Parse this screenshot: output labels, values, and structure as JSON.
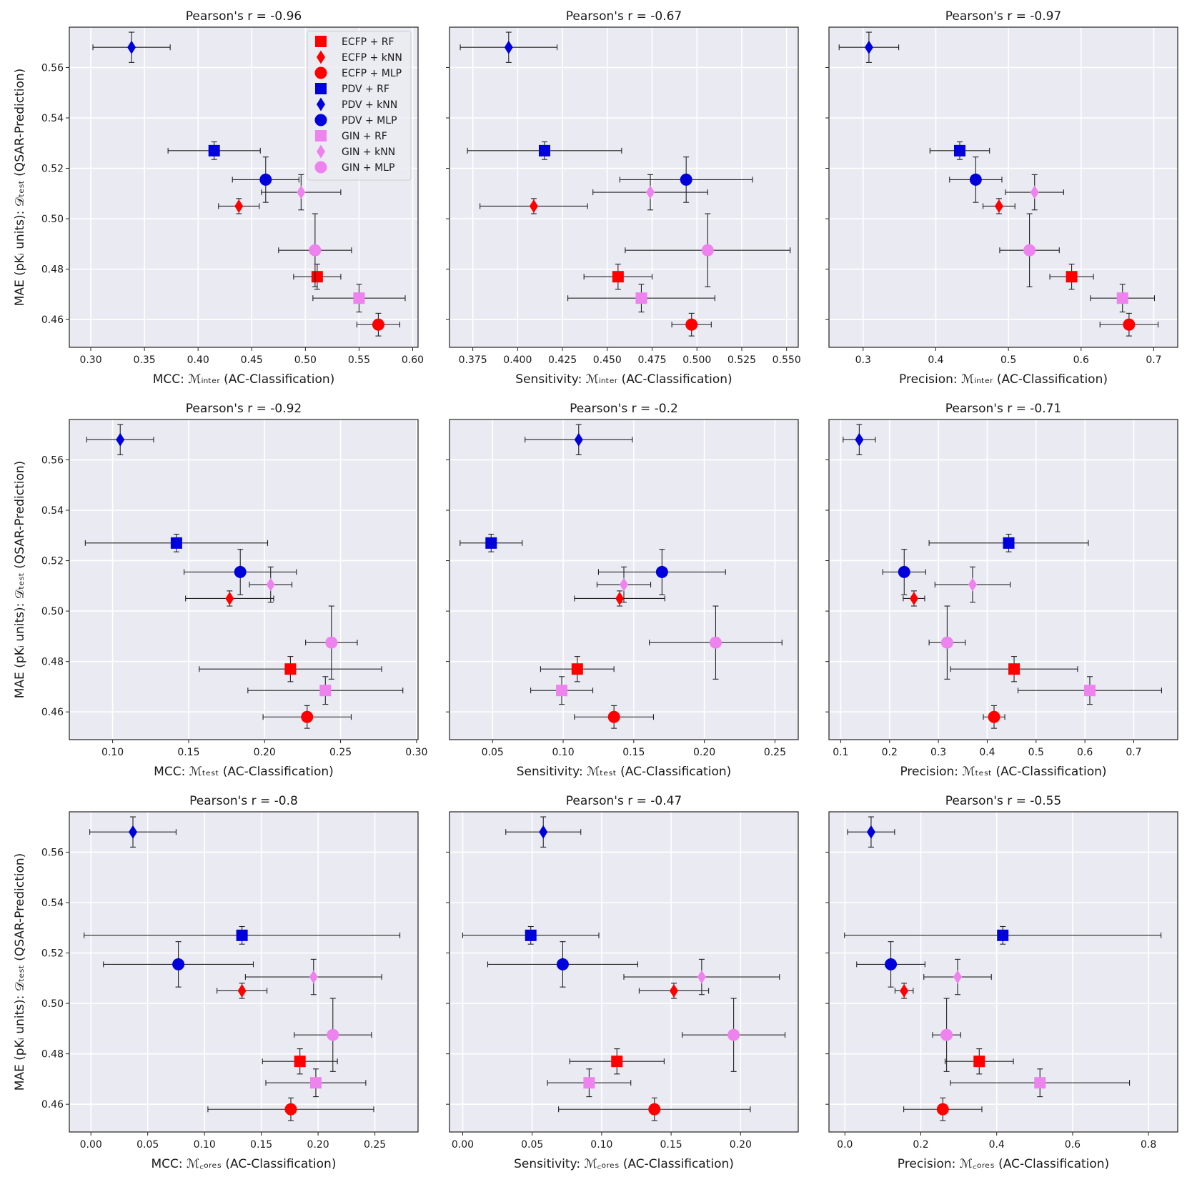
{
  "figure": {
    "ylabel": "MAE (pKᵢ units): 𝒟ₜₑₛₜ (QSAR-Prediction)",
    "legend": [
      "ECFP + RF",
      "ECFP + kNN",
      "ECFP + MLP",
      "PDV + RF",
      "PDV + kNN",
      "PDV + MLP",
      "GIN + RF",
      "GIN + kNN",
      "GIN + MLP"
    ],
    "colors": {
      "ECFP": "#ff0000",
      "PDV": "#0000dd",
      "GIN": "#ee82ee",
      "panel_bg": "#eaeaf2",
      "grid": "#ffffff"
    }
  },
  "chart_data": [
    {
      "type": "scatter",
      "title": "Pearson's r = -0.96",
      "xlabel": "MCC: ℳᵢₙₜₑᵣ (AC-Classification)",
      "xlim": [
        0.28,
        0.605
      ],
      "ylim": [
        0.449,
        0.576
      ],
      "xticks": [
        0.3,
        0.35,
        0.4,
        0.45,
        0.5,
        0.55,
        0.6
      ],
      "xtick_labels": [
        "0.30",
        "0.35",
        "0.40",
        "0.45",
        "0.50",
        "0.55",
        "0.60"
      ],
      "yticks": [
        0.46,
        0.48,
        0.5,
        0.52,
        0.54,
        0.56
      ],
      "ytick_labels": [
        "0.46",
        "0.48",
        "0.50",
        "0.52",
        "0.54",
        "0.56"
      ],
      "points": [
        {
          "label": "ECFP + RF",
          "x": 0.511,
          "xerr": 0.022,
          "y": 0.477,
          "yerr": 0.005
        },
        {
          "label": "ECFP + kNN",
          "x": 0.438,
          "xerr": 0.019,
          "y": 0.505,
          "yerr": 0.003
        },
        {
          "label": "ECFP + MLP",
          "x": 0.568,
          "xerr": 0.02,
          "y": 0.458,
          "yerr": 0.0045
        },
        {
          "label": "PDV + RF",
          "x": 0.415,
          "xerr": 0.043,
          "y": 0.527,
          "yerr": 0.0035
        },
        {
          "label": "PDV + kNN",
          "x": 0.338,
          "xerr": 0.036,
          "y": 0.568,
          "yerr": 0.006
        },
        {
          "label": "PDV + MLP",
          "x": 0.463,
          "xerr": 0.031,
          "y": 0.5155,
          "yerr": 0.009
        },
        {
          "label": "GIN + RF",
          "x": 0.55,
          "xerr": 0.043,
          "y": 0.4685,
          "yerr": 0.0055
        },
        {
          "label": "GIN + kNN",
          "x": 0.496,
          "xerr": 0.037,
          "y": 0.5105,
          "yerr": 0.007
        },
        {
          "label": "GIN + MLP",
          "x": 0.509,
          "xerr": 0.034,
          "y": 0.4875,
          "yerr": 0.0145
        }
      ]
    },
    {
      "type": "scatter",
      "title": "Pearson's r = -0.67",
      "xlabel": "Sensitivity: ℳᵢₙₜₑᵣ (AC-Classification)",
      "xlim": [
        0.362,
        0.5565
      ],
      "ylim": [
        0.449,
        0.576
      ],
      "xticks": [
        0.375,
        0.4,
        0.425,
        0.45,
        0.475,
        0.5,
        0.525,
        0.55
      ],
      "xtick_labels": [
        "0.375",
        "0.400",
        "0.425",
        "0.450",
        "0.475",
        "0.500",
        "0.525",
        "0.550"
      ],
      "yticks": [
        0.46,
        0.48,
        0.5,
        0.52,
        0.54,
        0.56
      ],
      "ytick_labels": [
        "",
        "",
        "",
        "",
        "",
        ""
      ],
      "points": [
        {
          "label": "ECFP + RF",
          "x": 0.456,
          "xerr": 0.019,
          "y": 0.477,
          "yerr": 0.005
        },
        {
          "label": "ECFP + kNN",
          "x": 0.409,
          "xerr": 0.03,
          "y": 0.505,
          "yerr": 0.003
        },
        {
          "label": "ECFP + MLP",
          "x": 0.497,
          "xerr": 0.011,
          "y": 0.458,
          "yerr": 0.0045
        },
        {
          "label": "PDV + RF",
          "x": 0.415,
          "xerr": 0.043,
          "y": 0.527,
          "yerr": 0.0035
        },
        {
          "label": "PDV + kNN",
          "x": 0.395,
          "xerr": 0.027,
          "y": 0.568,
          "yerr": 0.006
        },
        {
          "label": "PDV + MLP",
          "x": 0.494,
          "xerr": 0.037,
          "y": 0.5155,
          "yerr": 0.009
        },
        {
          "label": "GIN + RF",
          "x": 0.469,
          "xerr": 0.041,
          "y": 0.4685,
          "yerr": 0.0055
        },
        {
          "label": "GIN + kNN",
          "x": 0.474,
          "xerr": 0.032,
          "y": 0.5105,
          "yerr": 0.007
        },
        {
          "label": "GIN + MLP",
          "x": 0.506,
          "xerr": 0.046,
          "y": 0.4875,
          "yerr": 0.0145
        }
      ]
    },
    {
      "type": "scatter",
      "title": "Pearson's r = -0.97",
      "xlabel": "Precision: ℳᵢₙₜₑᵣ (AC-Classification)",
      "xlim": [
        0.253,
        0.733
      ],
      "ylim": [
        0.449,
        0.576
      ],
      "xticks": [
        0.3,
        0.4,
        0.5,
        0.6,
        0.7
      ],
      "xtick_labels": [
        "0.3",
        "0.4",
        "0.5",
        "0.6",
        "0.7"
      ],
      "yticks": [
        0.46,
        0.48,
        0.5,
        0.52,
        0.54,
        0.56
      ],
      "ytick_labels": [
        "",
        "",
        "",
        "",
        "",
        ""
      ],
      "points": [
        {
          "label": "ECFP + RF",
          "x": 0.587,
          "xerr": 0.03,
          "y": 0.477,
          "yerr": 0.005
        },
        {
          "label": "ECFP + kNN",
          "x": 0.487,
          "xerr": 0.022,
          "y": 0.505,
          "yerr": 0.003
        },
        {
          "label": "ECFP + MLP",
          "x": 0.666,
          "xerr": 0.04,
          "y": 0.458,
          "yerr": 0.0045
        },
        {
          "label": "PDV + RF",
          "x": 0.433,
          "xerr": 0.041,
          "y": 0.527,
          "yerr": 0.0035
        },
        {
          "label": "PDV + kNN",
          "x": 0.308,
          "xerr": 0.041,
          "y": 0.568,
          "yerr": 0.006
        },
        {
          "label": "PDV + MLP",
          "x": 0.455,
          "xerr": 0.036,
          "y": 0.5155,
          "yerr": 0.009
        },
        {
          "label": "GIN + RF",
          "x": 0.657,
          "xerr": 0.044,
          "y": 0.4685,
          "yerr": 0.0055
        },
        {
          "label": "GIN + kNN",
          "x": 0.536,
          "xerr": 0.04,
          "y": 0.5105,
          "yerr": 0.007
        },
        {
          "label": "GIN + MLP",
          "x": 0.529,
          "xerr": 0.041,
          "y": 0.4875,
          "yerr": 0.0145
        }
      ]
    },
    {
      "type": "scatter",
      "title": "Pearson's r = -0.92",
      "xlabel": "MCC: ℳₜₑₛₜ (AC-Classification)",
      "xlim": [
        0.0715,
        0.301
      ],
      "ylim": [
        0.449,
        0.576
      ],
      "xticks": [
        0.1,
        0.15,
        0.2,
        0.25,
        0.3
      ],
      "xtick_labels": [
        "0.10",
        "0.15",
        "0.20",
        "0.25",
        "0.30"
      ],
      "yticks": [
        0.46,
        0.48,
        0.5,
        0.52,
        0.54,
        0.56
      ],
      "ytick_labels": [
        "0.46",
        "0.48",
        "0.50",
        "0.52",
        "0.54",
        "0.56"
      ],
      "points": [
        {
          "label": "ECFP + RF",
          "x": 0.217,
          "xerr": 0.06,
          "y": 0.477,
          "yerr": 0.005
        },
        {
          "label": "ECFP + kNN",
          "x": 0.177,
          "xerr": 0.029,
          "y": 0.505,
          "yerr": 0.003
        },
        {
          "label": "ECFP + MLP",
          "x": 0.228,
          "xerr": 0.029,
          "y": 0.458,
          "yerr": 0.0045
        },
        {
          "label": "PDV + RF",
          "x": 0.142,
          "xerr": 0.06,
          "y": 0.527,
          "yerr": 0.0035
        },
        {
          "label": "PDV + kNN",
          "x": 0.105,
          "xerr": 0.022,
          "y": 0.568,
          "yerr": 0.006
        },
        {
          "label": "PDV + MLP",
          "x": 0.184,
          "xerr": 0.037,
          "y": 0.5155,
          "yerr": 0.009
        },
        {
          "label": "GIN + RF",
          "x": 0.24,
          "xerr": 0.051,
          "y": 0.4685,
          "yerr": 0.0055
        },
        {
          "label": "GIN + kNN",
          "x": 0.204,
          "xerr": 0.014,
          "y": 0.5105,
          "yerr": 0.007
        },
        {
          "label": "GIN + MLP",
          "x": 0.244,
          "xerr": 0.017,
          "y": 0.4875,
          "yerr": 0.0145
        }
      ]
    },
    {
      "type": "scatter",
      "title": "Pearson's r = -0.2",
      "xlabel": "Sensitivity: ℳₜₑₛₜ (AC-Classification)",
      "xlim": [
        0.0195,
        0.2665
      ],
      "ylim": [
        0.449,
        0.576
      ],
      "xticks": [
        0.05,
        0.1,
        0.15,
        0.2,
        0.25
      ],
      "xtick_labels": [
        "0.05",
        "0.10",
        "0.15",
        "0.20",
        "0.25"
      ],
      "yticks": [
        0.46,
        0.48,
        0.5,
        0.52,
        0.54,
        0.56
      ],
      "ytick_labels": [
        "",
        "",
        "",
        "",
        "",
        ""
      ],
      "points": [
        {
          "label": "ECFP + RF",
          "x": 0.11,
          "xerr": 0.026,
          "y": 0.477,
          "yerr": 0.005
        },
        {
          "label": "ECFP + kNN",
          "x": 0.14,
          "xerr": 0.032,
          "y": 0.505,
          "yerr": 0.003
        },
        {
          "label": "ECFP + MLP",
          "x": 0.136,
          "xerr": 0.028,
          "y": 0.458,
          "yerr": 0.0045
        },
        {
          "label": "PDV + RF",
          "x": 0.049,
          "xerr": 0.022,
          "y": 0.527,
          "yerr": 0.0035
        },
        {
          "label": "PDV + kNN",
          "x": 0.111,
          "xerr": 0.038,
          "y": 0.568,
          "yerr": 0.006
        },
        {
          "label": "PDV + MLP",
          "x": 0.17,
          "xerr": 0.045,
          "y": 0.5155,
          "yerr": 0.009
        },
        {
          "label": "GIN + RF",
          "x": 0.099,
          "xerr": 0.022,
          "y": 0.4685,
          "yerr": 0.0055
        },
        {
          "label": "GIN + kNN",
          "x": 0.143,
          "xerr": 0.019,
          "y": 0.5105,
          "yerr": 0.007
        },
        {
          "label": "GIN + MLP",
          "x": 0.208,
          "xerr": 0.047,
          "y": 0.4875,
          "yerr": 0.0145
        }
      ]
    },
    {
      "type": "scatter",
      "title": "Pearson's r = -0.71",
      "xlabel": "Precision: ℳₜₑₛₜ (AC-Classification)",
      "xlim": [
        0.076,
        0.79
      ],
      "ylim": [
        0.449,
        0.576
      ],
      "xticks": [
        0.1,
        0.2,
        0.3,
        0.4,
        0.5,
        0.6,
        0.7
      ],
      "xtick_labels": [
        "0.1",
        "0.2",
        "0.3",
        "0.4",
        "0.5",
        "0.6",
        "0.7"
      ],
      "yticks": [
        0.46,
        0.48,
        0.5,
        0.52,
        0.54,
        0.56
      ],
      "ytick_labels": [
        "",
        "",
        "",
        "",
        "",
        ""
      ],
      "points": [
        {
          "label": "ECFP + RF",
          "x": 0.455,
          "xerr": 0.13,
          "y": 0.477,
          "yerr": 0.005
        },
        {
          "label": "ECFP + kNN",
          "x": 0.25,
          "xerr": 0.022,
          "y": 0.505,
          "yerr": 0.003
        },
        {
          "label": "ECFP + MLP",
          "x": 0.414,
          "xerr": 0.022,
          "y": 0.458,
          "yerr": 0.0045
        },
        {
          "label": "PDV + RF",
          "x": 0.444,
          "xerr": 0.163,
          "y": 0.527,
          "yerr": 0.0035
        },
        {
          "label": "PDV + kNN",
          "x": 0.138,
          "xerr": 0.033,
          "y": 0.568,
          "yerr": 0.006
        },
        {
          "label": "PDV + MLP",
          "x": 0.23,
          "xerr": 0.044,
          "y": 0.5155,
          "yerr": 0.009
        },
        {
          "label": "GIN + RF",
          "x": 0.61,
          "xerr": 0.147,
          "y": 0.4685,
          "yerr": 0.0055
        },
        {
          "label": "GIN + kNN",
          "x": 0.37,
          "xerr": 0.077,
          "y": 0.5105,
          "yerr": 0.007
        },
        {
          "label": "GIN + MLP",
          "x": 0.318,
          "xerr": 0.037,
          "y": 0.4875,
          "yerr": 0.0145
        }
      ]
    },
    {
      "type": "scatter",
      "title": "Pearson's r = -0.8",
      "xlabel": "MCC: ℳ꜀ₒᵣₑₛ (AC-Classification)",
      "xlim": [
        -0.019,
        0.288
      ],
      "ylim": [
        0.449,
        0.576
      ],
      "xticks": [
        0.0,
        0.05,
        0.1,
        0.15,
        0.2,
        0.25
      ],
      "xtick_labels": [
        "0.00",
        "0.05",
        "0.10",
        "0.15",
        "0.20",
        "0.25"
      ],
      "yticks": [
        0.46,
        0.48,
        0.5,
        0.52,
        0.54,
        0.56
      ],
      "ytick_labels": [
        "0.46",
        "0.48",
        "0.50",
        "0.52",
        "0.54",
        "0.56"
      ],
      "points": [
        {
          "label": "ECFP + RF",
          "x": 0.184,
          "xerr": 0.033,
          "y": 0.477,
          "yerr": 0.005
        },
        {
          "label": "ECFP + kNN",
          "x": 0.133,
          "xerr": 0.022,
          "y": 0.505,
          "yerr": 0.003
        },
        {
          "label": "ECFP + MLP",
          "x": 0.176,
          "xerr": 0.073,
          "y": 0.458,
          "yerr": 0.0045
        },
        {
          "label": "PDV + RF",
          "x": 0.133,
          "xerr": 0.139,
          "y": 0.527,
          "yerr": 0.0035
        },
        {
          "label": "PDV + kNN",
          "x": 0.037,
          "xerr": 0.038,
          "y": 0.568,
          "yerr": 0.006
        },
        {
          "label": "PDV + MLP",
          "x": 0.077,
          "xerr": 0.066,
          "y": 0.5155,
          "yerr": 0.009
        },
        {
          "label": "GIN + RF",
          "x": 0.198,
          "xerr": 0.044,
          "y": 0.4685,
          "yerr": 0.0055
        },
        {
          "label": "GIN + kNN",
          "x": 0.196,
          "xerr": 0.06,
          "y": 0.5105,
          "yerr": 0.007
        },
        {
          "label": "GIN + MLP",
          "x": 0.213,
          "xerr": 0.034,
          "y": 0.4875,
          "yerr": 0.0145
        }
      ]
    },
    {
      "type": "scatter",
      "title": "Pearson's r = -0.47",
      "xlabel": "Sensitivity: ℳ꜀ₒᵣₑₛ (AC-Classification)",
      "xlim": [
        -0.0095,
        0.2415
      ],
      "ylim": [
        0.449,
        0.576
      ],
      "xticks": [
        0.0,
        0.05,
        0.1,
        0.15,
        0.2
      ],
      "xtick_labels": [
        "0.00",
        "0.05",
        "0.10",
        "0.15",
        "0.20"
      ],
      "yticks": [
        0.46,
        0.48,
        0.5,
        0.52,
        0.54,
        0.56
      ],
      "ytick_labels": [
        "",
        "",
        "",
        "",
        "",
        ""
      ],
      "points": [
        {
          "label": "ECFP + RF",
          "x": 0.111,
          "xerr": 0.034,
          "y": 0.477,
          "yerr": 0.005
        },
        {
          "label": "ECFP + kNN",
          "x": 0.152,
          "xerr": 0.025,
          "y": 0.505,
          "yerr": 0.003
        },
        {
          "label": "ECFP + MLP",
          "x": 0.138,
          "xerr": 0.069,
          "y": 0.458,
          "yerr": 0.0045
        },
        {
          "label": "PDV + RF",
          "x": 0.049,
          "xerr": 0.049,
          "y": 0.527,
          "yerr": 0.0035
        },
        {
          "label": "PDV + kNN",
          "x": 0.058,
          "xerr": 0.027,
          "y": 0.568,
          "yerr": 0.006
        },
        {
          "label": "PDV + MLP",
          "x": 0.072,
          "xerr": 0.054,
          "y": 0.5155,
          "yerr": 0.009
        },
        {
          "label": "GIN + RF",
          "x": 0.091,
          "xerr": 0.03,
          "y": 0.4685,
          "yerr": 0.0055
        },
        {
          "label": "GIN + kNN",
          "x": 0.172,
          "xerr": 0.056,
          "y": 0.5105,
          "yerr": 0.007
        },
        {
          "label": "GIN + MLP",
          "x": 0.195,
          "xerr": 0.037,
          "y": 0.4875,
          "yerr": 0.0145
        }
      ]
    },
    {
      "type": "scatter",
      "title": "Pearson's r = -0.55",
      "xlabel": "Precision: ℳ꜀ₒᵣₑₛ (AC-Classification)",
      "xlim": [
        -0.042,
        0.877
      ],
      "ylim": [
        0.449,
        0.576
      ],
      "xticks": [
        0.0,
        0.2,
        0.4,
        0.6,
        0.8
      ],
      "xtick_labels": [
        "0.0",
        "0.2",
        "0.4",
        "0.6",
        "0.8"
      ],
      "yticks": [
        0.46,
        0.48,
        0.5,
        0.52,
        0.54,
        0.56
      ],
      "ytick_labels": [
        "",
        "",
        "",
        "",
        "",
        ""
      ],
      "points": [
        {
          "label": "ECFP + RF",
          "x": 0.354,
          "xerr": 0.09,
          "y": 0.477,
          "yerr": 0.005
        },
        {
          "label": "ECFP + kNN",
          "x": 0.156,
          "xerr": 0.024,
          "y": 0.505,
          "yerr": 0.003
        },
        {
          "label": "ECFP + MLP",
          "x": 0.258,
          "xerr": 0.103,
          "y": 0.458,
          "yerr": 0.0045
        },
        {
          "label": "PDV + RF",
          "x": 0.416,
          "xerr": 0.417,
          "y": 0.527,
          "yerr": 0.0035
        },
        {
          "label": "PDV + kNN",
          "x": 0.069,
          "xerr": 0.062,
          "y": 0.568,
          "yerr": 0.006
        },
        {
          "label": "PDV + MLP",
          "x": 0.121,
          "xerr": 0.09,
          "y": 0.5155,
          "yerr": 0.009
        },
        {
          "label": "GIN + RF",
          "x": 0.514,
          "xerr": 0.236,
          "y": 0.4685,
          "yerr": 0.0055
        },
        {
          "label": "GIN + kNN",
          "x": 0.297,
          "xerr": 0.089,
          "y": 0.5105,
          "yerr": 0.007
        },
        {
          "label": "GIN + MLP",
          "x": 0.268,
          "xerr": 0.037,
          "y": 0.4875,
          "yerr": 0.0145
        }
      ]
    }
  ]
}
